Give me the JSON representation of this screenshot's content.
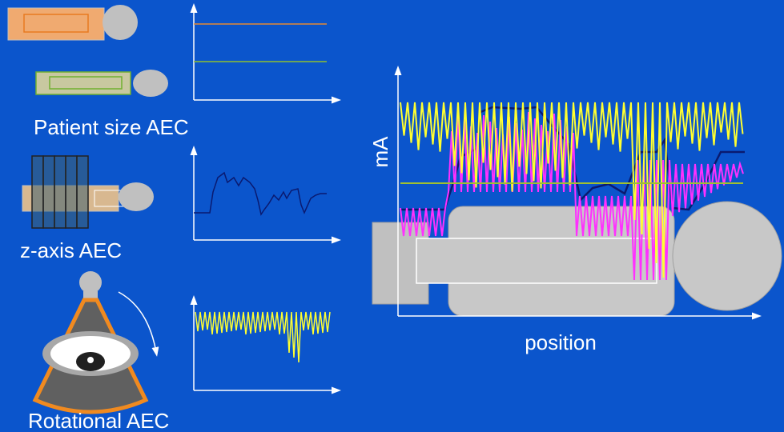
{
  "panels": [
    {
      "label": "Patient size AEC"
    },
    {
      "label": "z-axis AEC"
    },
    {
      "label": "Rotational AEC"
    }
  ],
  "main_plot": {
    "y_axis_label": "mA",
    "x_axis_label": "position"
  }
}
